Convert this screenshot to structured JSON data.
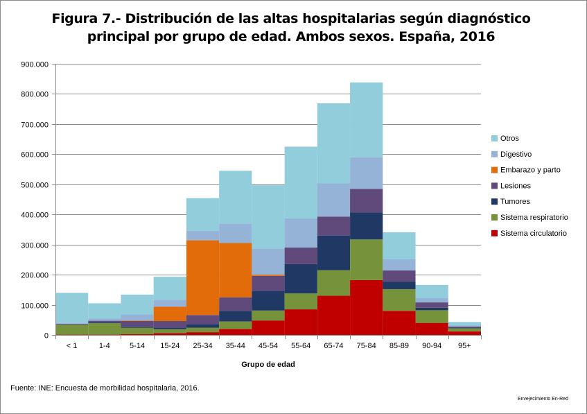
{
  "chart_data": {
    "type": "bar",
    "stacked": true,
    "title": "Figura 7.- Distribución de las altas hospitalarias según diagnóstico principal por grupo de edad. Ambos sexos. España, 2016",
    "xlabel": "Grupo de edad",
    "ylabel": "",
    "ylim": [
      0,
      900000
    ],
    "yticks": [
      0,
      100000,
      200000,
      300000,
      400000,
      500000,
      600000,
      700000,
      800000,
      900000
    ],
    "ytick_labels": [
      "0",
      "100.000",
      "200.000",
      "300.000",
      "400.000",
      "500.000",
      "600.000",
      "700.000",
      "800.000",
      "900.000"
    ],
    "grid": true,
    "legend_position": "right",
    "categories": [
      "< 1",
      "1-4",
      "5-14",
      "15-24",
      "25-34",
      "35-44",
      "45-54",
      "55-64",
      "65-74",
      "75-84",
      "85-89",
      "90-94",
      "95+"
    ],
    "series": [
      {
        "name": "Sistema circulatorio",
        "color": "#c00000",
        "values": [
          1000,
          1000,
          3000,
          6000,
          9000,
          20000,
          48000,
          85000,
          130000,
          182000,
          80000,
          40000,
          12000
        ]
      },
      {
        "name": "Sistema respiratorio",
        "color": "#76933c",
        "values": [
          33000,
          38000,
          21000,
          13000,
          15000,
          25000,
          33000,
          53000,
          85000,
          135000,
          72000,
          42000,
          10000
        ]
      },
      {
        "name": "Tumores",
        "color": "#1f3864",
        "values": [
          1000,
          3000,
          4000,
          5000,
          12000,
          35000,
          65000,
          97000,
          115000,
          90000,
          25000,
          8000,
          2000
        ]
      },
      {
        "name": "Lesiones",
        "color": "#604a7b",
        "values": [
          2000,
          5000,
          18000,
          22000,
          30000,
          45000,
          50000,
          55000,
          63000,
          78000,
          37000,
          18000,
          4000
        ]
      },
      {
        "name": "Embarazo y parto",
        "color": "#e26b0a",
        "values": [
          0,
          0,
          2000,
          48000,
          248000,
          180000,
          4000,
          0,
          0,
          0,
          0,
          0,
          0
        ]
      },
      {
        "name": "Digestivo",
        "color": "#95b3d7",
        "values": [
          3000,
          8000,
          20000,
          23000,
          32000,
          65000,
          87000,
          97000,
          110000,
          105000,
          37000,
          14000,
          3000
        ]
      },
      {
        "name": "Otros",
        "color": "#92cddc",
        "values": [
          100000,
          50000,
          66000,
          76000,
          108000,
          175000,
          210000,
          238000,
          266000,
          248000,
          90000,
          44000,
          12000
        ]
      }
    ]
  },
  "source_note": "Fuente: INE: Encuesta de morbilidad hospitalaria, 2016.",
  "credit": "Envejecimiento En-Red"
}
